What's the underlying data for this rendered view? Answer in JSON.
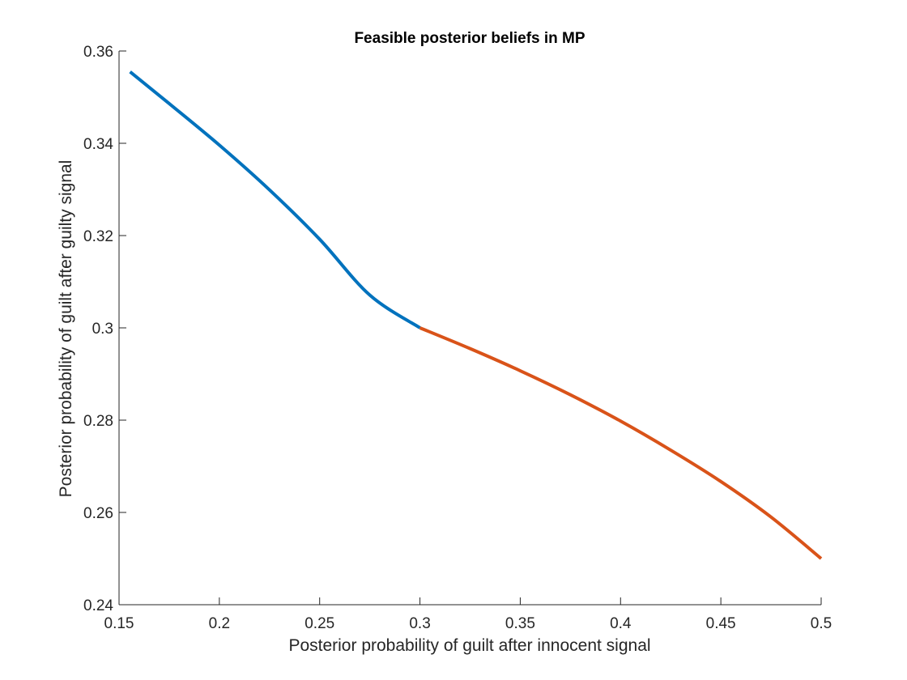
{
  "chart_data": {
    "type": "line",
    "title": "Feasible posterior beliefs in MP",
    "xlabel": "Posterior probability of guilt after innocent signal",
    "ylabel": "Posterior probability of guilt after guilty signal",
    "xlim": [
      0.15,
      0.5
    ],
    "ylim": [
      0.24,
      0.36
    ],
    "xticks": [
      0.15,
      0.2,
      0.25,
      0.3,
      0.35,
      0.4,
      0.45,
      0.5
    ],
    "xtick_labels": [
      "0.15",
      "0.2",
      "0.25",
      "0.3",
      "0.35",
      "0.4",
      "0.45",
      "0.5"
    ],
    "yticks": [
      0.24,
      0.26,
      0.28,
      0.3,
      0.32,
      0.34,
      0.36
    ],
    "ytick_labels": [
      "0.24",
      "0.26",
      "0.28",
      "0.3",
      "0.32",
      "0.34",
      "0.36"
    ],
    "grid": false,
    "legend": "none",
    "series": [
      {
        "color": "#0072BD",
        "x": [
          0.1555,
          0.175,
          0.2,
          0.225,
          0.25,
          0.275,
          0.3
        ],
        "y": [
          0.3555,
          0.3486,
          0.3396,
          0.3299,
          0.3192,
          0.3071,
          0.3
        ]
      },
      {
        "color": "#D95319",
        "x": [
          0.3,
          0.325,
          0.35,
          0.375,
          0.4,
          0.425,
          0.45,
          0.475,
          0.5
        ],
        "y": [
          0.3,
          0.2955,
          0.2907,
          0.2855,
          0.2798,
          0.2735,
          0.2667,
          0.259,
          0.25
        ]
      }
    ]
  }
}
